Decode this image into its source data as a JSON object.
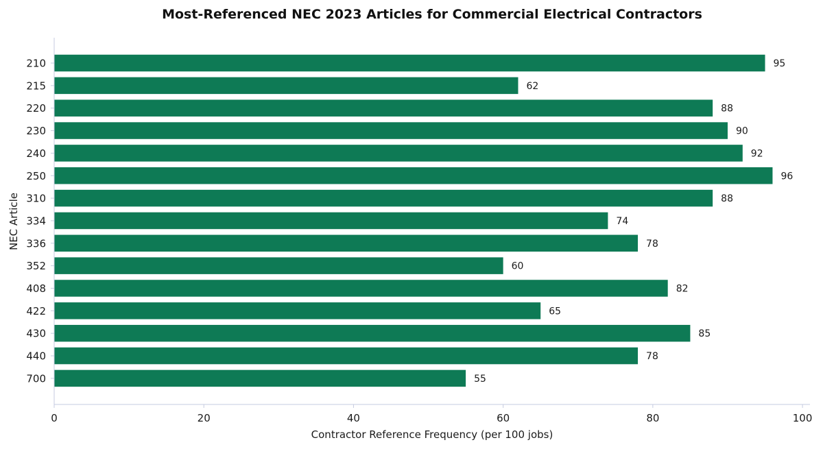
{
  "chart_data": {
    "type": "bar",
    "orientation": "horizontal",
    "title": "Most-Referenced NEC 2023 Articles for Commercial Electrical Contractors",
    "xlabel": "Contractor Reference Frequency (per 100 jobs)",
    "ylabel": "NEC Article",
    "categories": [
      "210",
      "215",
      "220",
      "230",
      "240",
      "250",
      "310",
      "334",
      "336",
      "352",
      "408",
      "422",
      "430",
      "440",
      "700"
    ],
    "values": [
      95,
      62,
      88,
      90,
      92,
      96,
      88,
      74,
      78,
      60,
      82,
      65,
      85,
      78,
      55
    ],
    "xlim": [
      0,
      101
    ],
    "xticks": [
      0,
      20,
      40,
      60,
      80,
      100
    ],
    "grid": false,
    "legend": "none",
    "bar_color": "#0e7a55",
    "axis_color": "#c5cbe0"
  }
}
